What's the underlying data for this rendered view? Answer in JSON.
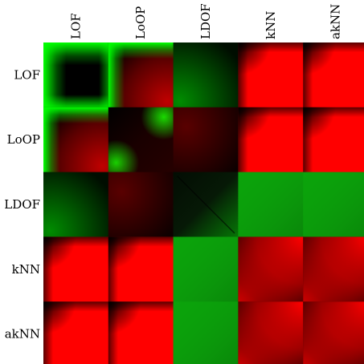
{
  "chart_data": {
    "type": "heatmap",
    "title": "",
    "xlabel": "",
    "ylabel": "",
    "x_categories": [
      "LOF",
      "LoOP",
      "LDOF",
      "kNN",
      "akNN"
    ],
    "y_categories": [
      "LOF",
      "LoOP",
      "LDOF",
      "kNN",
      "akNN"
    ],
    "color_scale": {
      "negative": "#00ff00",
      "zero": "#000000",
      "positive": "#ff0000"
    },
    "blocks": [
      [
        {
          "pattern": "green-edge-dark-core",
          "level": -0.85
        },
        {
          "pattern": "green-top-left-red-interior",
          "level": 0.45
        },
        {
          "pattern": "dark-green-gradient",
          "level": -0.45
        },
        {
          "pattern": "red-fill-dark-corner",
          "level": 0.9
        },
        {
          "pattern": "red-fill-dark-corner",
          "level": 0.85
        }
      ],
      [
        {
          "pattern": "green-top-left-red-interior",
          "level": 0.45
        },
        {
          "pattern": "green-cross-dark-core",
          "level": -0.8
        },
        {
          "pattern": "dark-red-tint",
          "level": 0.2
        },
        {
          "pattern": "red-fill-dark-corner",
          "level": 0.9
        },
        {
          "pattern": "red-fill-dark-corner",
          "level": 0.85
        }
      ],
      [
        {
          "pattern": "dark-green-gradient",
          "level": -0.45
        },
        {
          "pattern": "dark-red-tint",
          "level": 0.2
        },
        {
          "pattern": "dark-diagonal-green",
          "level": -0.3
        },
        {
          "pattern": "uniform-green",
          "level": -0.75
        },
        {
          "pattern": "uniform-green",
          "level": -0.7
        }
      ],
      [
        {
          "pattern": "red-fill-dark-corner",
          "level": 0.9
        },
        {
          "pattern": "red-fill-dark-corner",
          "level": 0.9
        },
        {
          "pattern": "uniform-green",
          "level": -0.75
        },
        {
          "pattern": "red-diagonal-gradient",
          "level": 0.6
        },
        {
          "pattern": "red-diagonal-gradient",
          "level": 0.55
        }
      ],
      [
        {
          "pattern": "red-fill-dark-corner",
          "level": 0.85
        },
        {
          "pattern": "red-fill-dark-corner",
          "level": 0.85
        },
        {
          "pattern": "uniform-green",
          "level": -0.7
        },
        {
          "pattern": "red-diagonal-gradient",
          "level": 0.55
        },
        {
          "pattern": "red-diagonal-gradient",
          "level": 0.6
        }
      ]
    ]
  }
}
